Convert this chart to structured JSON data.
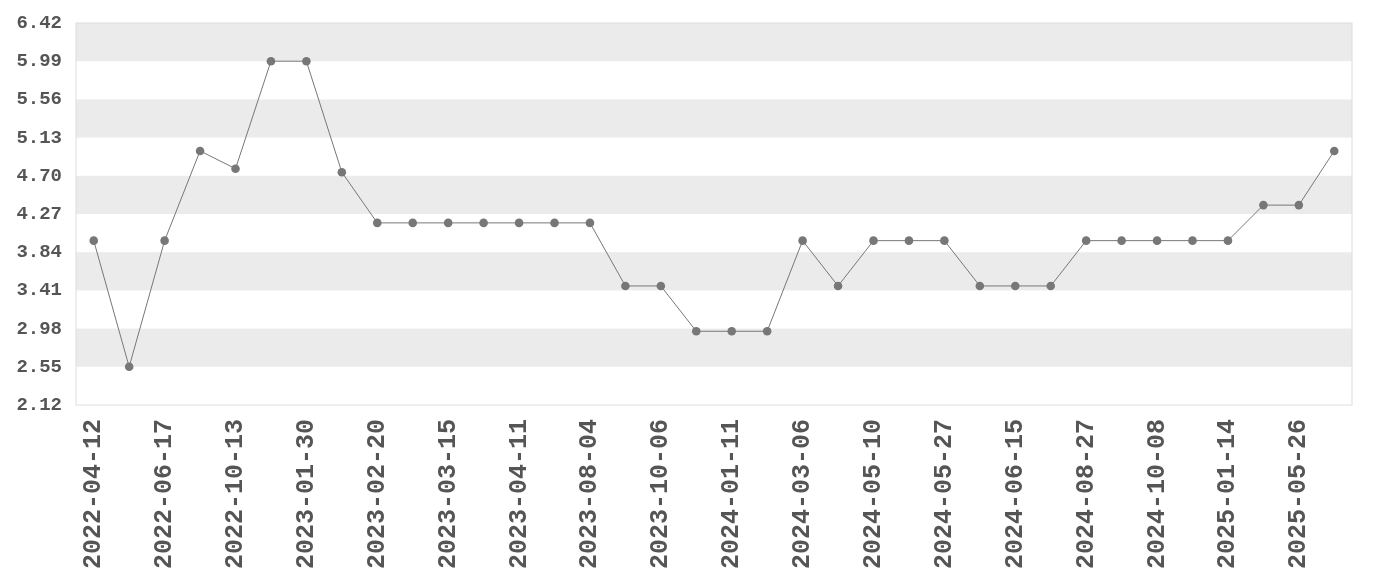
{
  "chart_data": {
    "type": "line",
    "categories": [
      "2022-04-12",
      null,
      "2022-06-17",
      null,
      "2022-10-13",
      null,
      "2023-01-30",
      null,
      "2023-02-20",
      null,
      "2023-03-15",
      null,
      "2023-04-11",
      null,
      "2023-08-04",
      null,
      "2023-10-06",
      null,
      "2024-01-11",
      null,
      "2024-03-06",
      null,
      "2024-05-10",
      null,
      "2024-05-27",
      null,
      "2024-06-15",
      null,
      "2024-08-27",
      null,
      "2024-10-08",
      null,
      "2025-01-14",
      null,
      "2025-05-26",
      null
    ],
    "series": [
      {
        "color": "#777777",
        "values": [
          3.97,
          2.55,
          3.97,
          4.98,
          4.78,
          5.99,
          5.99,
          4.74,
          4.17,
          4.17,
          4.17,
          4.17,
          4.17,
          4.17,
          4.17,
          3.46,
          3.46,
          2.95,
          2.95,
          2.95,
          3.97,
          3.46,
          3.97,
          3.97,
          3.97,
          3.46,
          3.46,
          3.46,
          3.97,
          3.97,
          3.97,
          3.97,
          3.97,
          4.37,
          4.37,
          4.98
        ]
      }
    ],
    "ylim": [
      2.12,
      6.42
    ],
    "yticks": [
      2.12,
      2.55,
      2.98,
      3.41,
      3.84,
      4.27,
      {
        "value": 4.7,
        "label": "4.70"
      },
      5.13,
      5.56,
      5.99,
      6.42
    ],
    "bands": [
      {
        "axis": "y",
        "from": 2.55,
        "to": 2.98,
        "color": "#ebebeb"
      },
      {
        "axis": "y",
        "from": 3.41,
        "to": 3.84,
        "color": "#ebebeb"
      },
      {
        "axis": "y",
        "from": 4.27,
        "to": 4.7,
        "color": "#ebebeb"
      },
      {
        "axis": "y",
        "from": 5.13,
        "to": 5.56,
        "color": "#ebebeb"
      },
      {
        "axis": "y",
        "from": 5.99,
        "to": 6.42,
        "color": "#ebebeb"
      }
    ],
    "marker": "circle",
    "line_style": "solid"
  }
}
